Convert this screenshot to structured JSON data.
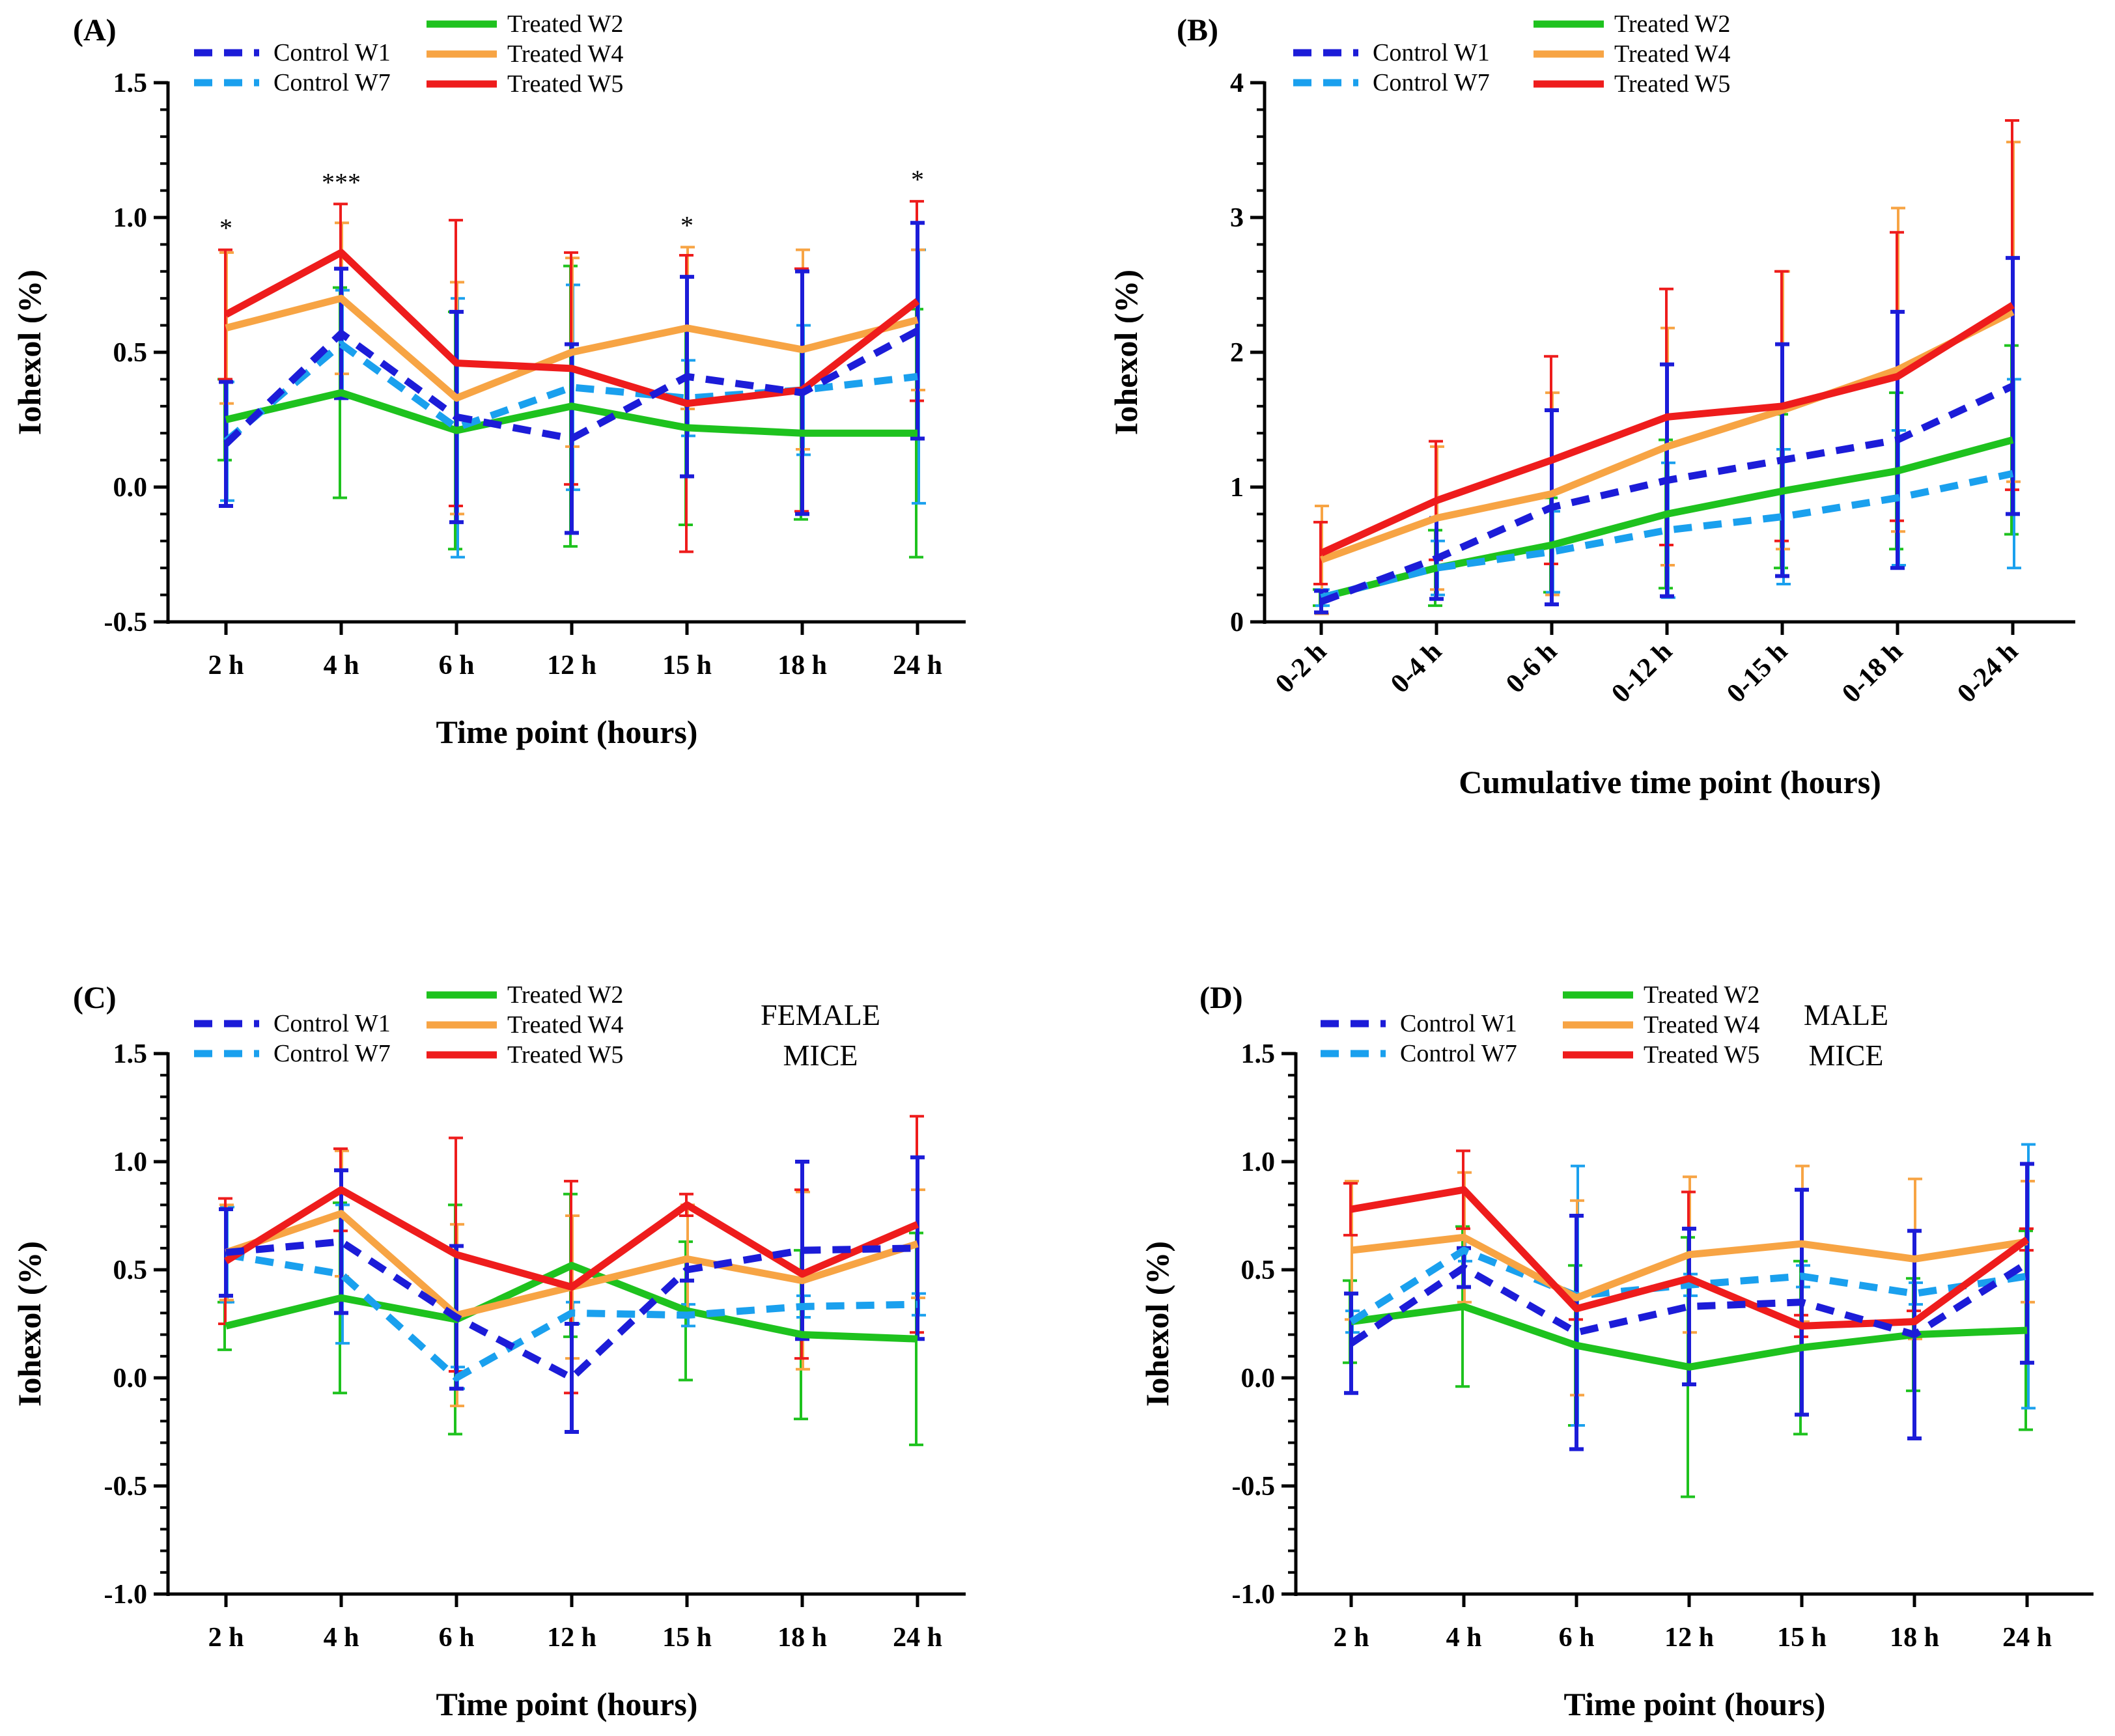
{
  "colors": {
    "control_w1": "#1c1cd8",
    "control_w7": "#1aa0ee",
    "treated_w2": "#1ec21e",
    "treated_w4": "#f7a444",
    "treated_w5": "#ee1c1c"
  },
  "chart_data": [
    {
      "id": "A",
      "panel_label": "(A)",
      "type": "line",
      "xlabel": "Time point (hours)",
      "ylabel": "Iohexol (%)",
      "categories": [
        "2 h",
        "4 h",
        "6 h",
        "12 h",
        "15 h",
        "18 h",
        "24 h"
      ],
      "ylim": [
        -0.5,
        1.5
      ],
      "yticks": [
        -0.5,
        0.0,
        0.5,
        1.0,
        1.5
      ],
      "ytick_labels": [
        "-0.5",
        "0.0",
        "0.5",
        "1.0",
        "1.5"
      ],
      "annotation": "",
      "significance": [
        "*",
        "***",
        "",
        "",
        "*",
        "",
        "*"
      ],
      "series": [
        {
          "name": "Control W1",
          "color_key": "control_w1",
          "dashed": true,
          "values": [
            0.16,
            0.57,
            0.26,
            0.18,
            0.41,
            0.35,
            0.58
          ],
          "err": [
            0.23,
            0.24,
            0.39,
            0.35,
            0.37,
            0.45,
            0.4
          ]
        },
        {
          "name": "Control W7",
          "color_key": "control_w7",
          "dashed": true,
          "values": [
            0.17,
            0.53,
            0.22,
            0.37,
            0.33,
            0.36,
            0.41
          ],
          "err": [
            0.22,
            0.2,
            0.48,
            0.38,
            0.14,
            0.24,
            0.47
          ]
        },
        {
          "name": "Treated W2",
          "color_key": "treated_w2",
          "dashed": false,
          "values": [
            0.25,
            0.35,
            0.21,
            0.3,
            0.22,
            0.2,
            0.2
          ],
          "err": [
            0.15,
            0.39,
            0.44,
            0.52,
            0.36,
            0.32,
            0.46
          ]
        },
        {
          "name": "Treated W4",
          "color_key": "treated_w4",
          "dashed": false,
          "values": [
            0.59,
            0.7,
            0.33,
            0.5,
            0.59,
            0.51,
            0.62
          ],
          "err": [
            0.28,
            0.28,
            0.43,
            0.35,
            0.3,
            0.37,
            0.26
          ]
        },
        {
          "name": "Treated W5",
          "color_key": "treated_w5",
          "dashed": false,
          "values": [
            0.64,
            0.87,
            0.46,
            0.44,
            0.31,
            0.36,
            0.69
          ],
          "err": [
            0.24,
            0.18,
            0.53,
            0.43,
            0.55,
            0.45,
            0.37
          ]
        }
      ]
    },
    {
      "id": "B",
      "panel_label": "(B)",
      "type": "line",
      "xlabel": "Cumulative time point (hours)",
      "ylabel": "Iohexol (%)",
      "categories": [
        "0-2 h",
        "0-4 h",
        "0-6 h",
        "0-12 h",
        "0-15 h",
        "0-18 h",
        "0-24 h"
      ],
      "ylim": [
        0,
        4
      ],
      "yticks": [
        0,
        1,
        2,
        3,
        4
      ],
      "ytick_labels": [
        "0",
        "1",
        "2",
        "3",
        "4"
      ],
      "annotation": "",
      "significance": [
        "",
        "",
        "",
        "",
        "",
        "",
        ""
      ],
      "series": [
        {
          "name": "Control W1",
          "color_key": "control_w1",
          "dashed": true,
          "values": [
            0.15,
            0.47,
            0.85,
            1.05,
            1.2,
            1.35,
            1.75
          ],
          "err": [
            0.08,
            0.3,
            0.72,
            0.86,
            0.86,
            0.95,
            0.95
          ]
        },
        {
          "name": "Control W7",
          "color_key": "control_w7",
          "dashed": true,
          "values": [
            0.18,
            0.4,
            0.52,
            0.68,
            0.78,
            0.92,
            1.1
          ],
          "err": [
            0.06,
            0.2,
            0.3,
            0.5,
            0.5,
            0.5,
            0.7
          ]
        },
        {
          "name": "Treated W2",
          "color_key": "treated_w2",
          "dashed": false,
          "values": [
            0.18,
            0.4,
            0.57,
            0.8,
            0.97,
            1.12,
            1.35
          ],
          "err": [
            0.06,
            0.28,
            0.35,
            0.55,
            0.57,
            0.58,
            0.7
          ]
        },
        {
          "name": "Treated W4",
          "color_key": "treated_w4",
          "dashed": false,
          "values": [
            0.46,
            0.77,
            0.95,
            1.3,
            1.57,
            1.87,
            2.3
          ],
          "err": [
            0.4,
            0.53,
            0.75,
            0.88,
            1.03,
            1.2,
            1.26
          ]
        },
        {
          "name": "Treated W5",
          "color_key": "treated_w5",
          "dashed": false,
          "values": [
            0.51,
            0.9,
            1.2,
            1.52,
            1.6,
            1.82,
            2.35
          ],
          "err": [
            0.23,
            0.44,
            0.77,
            0.95,
            1.0,
            1.07,
            1.37
          ]
        }
      ]
    },
    {
      "id": "C",
      "panel_label": "(C)",
      "type": "line",
      "xlabel": "Time point (hours)",
      "ylabel": "Iohexol (%)",
      "categories": [
        "2 h",
        "4 h",
        "6 h",
        "12 h",
        "15 h",
        "18 h",
        "24 h"
      ],
      "ylim": [
        -1.0,
        1.5
      ],
      "yticks": [
        -1.0,
        -0.5,
        0.0,
        0.5,
        1.0,
        1.5
      ],
      "ytick_labels": [
        "-1.0",
        "-0.5",
        "0.0",
        "0.5",
        "1.0",
        "1.5"
      ],
      "annotation": [
        "FEMALE",
        "MICE"
      ],
      "significance": [
        "",
        "",
        "",
        "",
        "",
        "",
        ""
      ],
      "series": [
        {
          "name": "Control W1",
          "color_key": "control_w1",
          "dashed": true,
          "values": [
            0.58,
            0.63,
            0.28,
            0.0,
            0.5,
            0.59,
            0.6
          ],
          "err": [
            0.2,
            0.33,
            0.33,
            0.25,
            0.05,
            0.41,
            0.42
          ]
        },
        {
          "name": "Control W7",
          "color_key": "control_w7",
          "dashed": true,
          "values": [
            0.57,
            0.48,
            0.0,
            0.3,
            0.29,
            0.33,
            0.34
          ],
          "err": [
            0.22,
            0.32,
            0.05,
            0.05,
            0.05,
            0.05,
            0.05
          ]
        },
        {
          "name": "Treated W2",
          "color_key": "treated_w2",
          "dashed": false,
          "values": [
            0.24,
            0.37,
            0.27,
            0.52,
            0.31,
            0.2,
            0.18
          ],
          "err": [
            0.11,
            0.44,
            0.53,
            0.33,
            0.32,
            0.39,
            0.49
          ]
        },
        {
          "name": "Treated W4",
          "color_key": "treated_w4",
          "dashed": false,
          "values": [
            0.58,
            0.76,
            0.29,
            0.42,
            0.55,
            0.45,
            0.62
          ],
          "err": [
            0.22,
            0.29,
            0.42,
            0.33,
            0.25,
            0.41,
            0.25
          ]
        },
        {
          "name": "Treated W5",
          "color_key": "treated_w5",
          "dashed": false,
          "values": [
            0.54,
            0.87,
            0.57,
            0.42,
            0.8,
            0.48,
            0.71
          ],
          "err": [
            0.29,
            0.19,
            0.54,
            0.49,
            0.05,
            0.39,
            0.5
          ]
        }
      ]
    },
    {
      "id": "D",
      "panel_label": "(D)",
      "type": "line",
      "xlabel": "Time point (hours)",
      "ylabel": "Iohexol (%)",
      "categories": [
        "2 h",
        "4 h",
        "6 h",
        "12 h",
        "15 h",
        "18 h",
        "24 h"
      ],
      "ylim": [
        -1.0,
        1.5
      ],
      "yticks": [
        -1.0,
        -0.5,
        0.0,
        0.5,
        1.0,
        1.5
      ],
      "ytick_labels": [
        "-1.0",
        "-0.5",
        "0.0",
        "0.5",
        "1.0",
        "1.5"
      ],
      "annotation": [
        "MALE",
        "MICE"
      ],
      "significance": [
        "",
        "",
        "",
        "",
        "",
        "",
        ""
      ],
      "series": [
        {
          "name": "Control W1",
          "color_key": "control_w1",
          "dashed": true,
          "values": [
            0.16,
            0.51,
            0.21,
            0.33,
            0.35,
            0.2,
            0.53
          ],
          "err": [
            0.23,
            0.09,
            0.54,
            0.36,
            0.52,
            0.48,
            0.46
          ]
        },
        {
          "name": "Control W7",
          "color_key": "control_w7",
          "dashed": true,
          "values": [
            0.26,
            0.59,
            0.38,
            0.43,
            0.47,
            0.39,
            0.47
          ],
          "err": [
            0.05,
            0.05,
            0.6,
            0.05,
            0.05,
            0.05,
            0.61
          ]
        },
        {
          "name": "Treated W2",
          "color_key": "treated_w2",
          "dashed": false,
          "values": [
            0.26,
            0.33,
            0.15,
            0.05,
            0.14,
            0.2,
            0.22
          ],
          "err": [
            0.19,
            0.37,
            0.37,
            0.6,
            0.4,
            0.26,
            0.46
          ]
        },
        {
          "name": "Treated W4",
          "color_key": "treated_w4",
          "dashed": false,
          "values": [
            0.59,
            0.65,
            0.37,
            0.57,
            0.62,
            0.55,
            0.63
          ],
          "err": [
            0.32,
            0.3,
            0.45,
            0.36,
            0.36,
            0.37,
            0.28
          ]
        },
        {
          "name": "Treated W5",
          "color_key": "treated_w5",
          "dashed": false,
          "values": [
            0.78,
            0.87,
            0.32,
            0.46,
            0.24,
            0.26,
            0.64
          ],
          "err": [
            0.12,
            0.18,
            0.05,
            0.4,
            0.05,
            0.05,
            0.05
          ]
        }
      ]
    }
  ]
}
